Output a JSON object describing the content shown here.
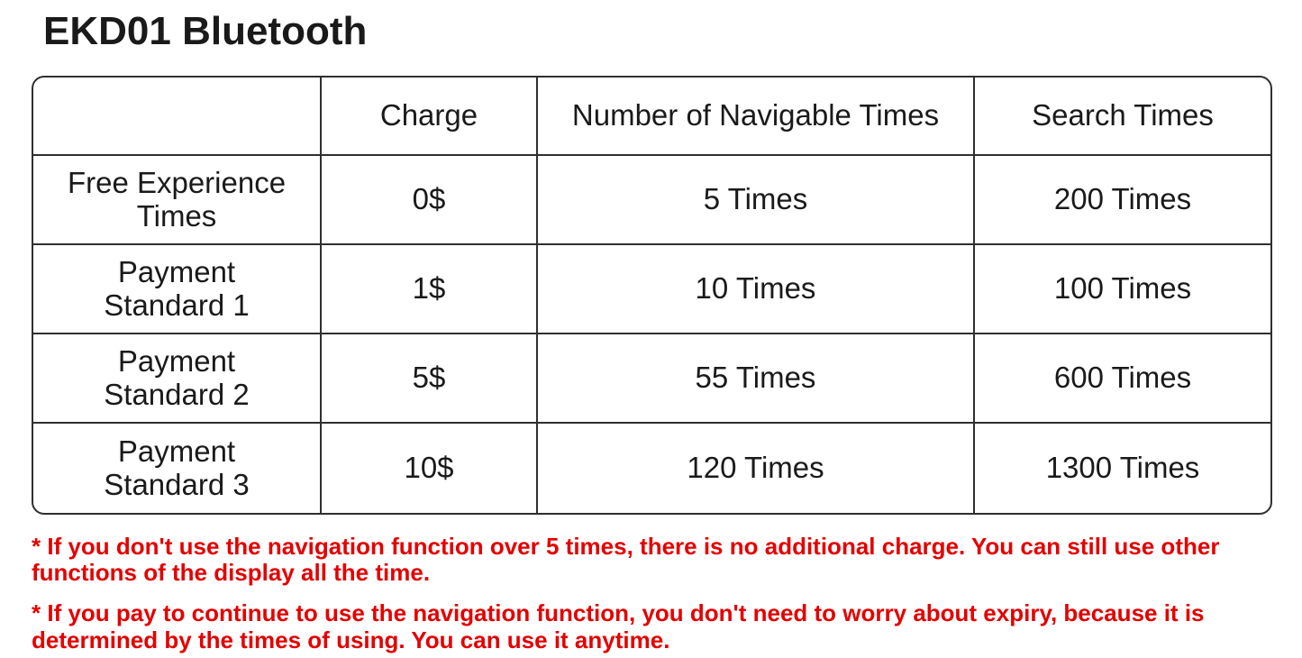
{
  "page": {
    "title": "EKD01 Bluetooth"
  },
  "colors": {
    "highlight_red": "#e40000",
    "text_black": "#1a1a1a",
    "table_border": "#2f2f2f"
  },
  "table": {
    "headers": {
      "blank": "",
      "charge": "Charge",
      "navigable": "Number of Navigable Times",
      "search": "Search Times"
    },
    "rows": [
      {
        "label": "Free Experience Times",
        "label_lines": [
          "Free Experience",
          "Times"
        ],
        "charge": "0$",
        "navigable": "5 Times",
        "search": "200 Times",
        "highlighted": false
      },
      {
        "label": "Payment Standard 1",
        "label_lines": [
          "Payment",
          "Standard 1"
        ],
        "charge": "1$",
        "navigable": "10 Times",
        "search": "100 Times",
        "highlighted": true
      },
      {
        "label": "Payment Standard 2",
        "label_lines": [
          "Payment",
          "Standard 2"
        ],
        "charge": "5$",
        "navigable": "55 Times",
        "search": "600 Times",
        "highlighted": true
      },
      {
        "label": "Payment Standard 3",
        "label_lines": [
          "Payment",
          "Standard 3"
        ],
        "charge": "10$",
        "navigable": "120 Times",
        "search": "1300 Times",
        "highlighted": true
      }
    ]
  },
  "notes": [
    "* If you don't use the navigation function over 5 times, there is no additional charge. You can still use other functions of the display all the time.",
    "* If you pay to continue to use the navigation function, you don't need to worry about expiry, because it is determined by the times of using. You can use it anytime."
  ]
}
